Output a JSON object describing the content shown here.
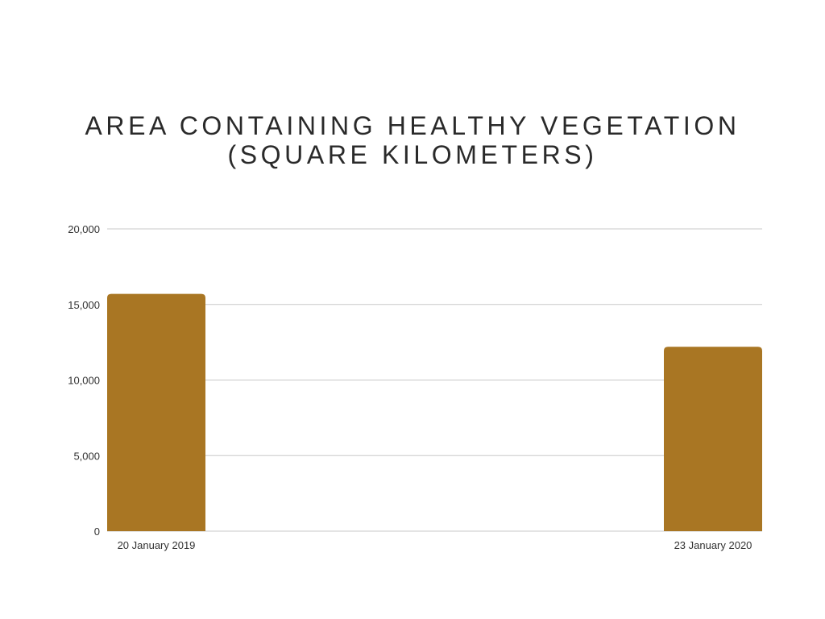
{
  "chart_title": {
    "line1": "AREA CONTAINING HEALTHY VEGETATION",
    "line2": "(SQUARE KILOMETERS)"
  },
  "colors": {
    "bar": "#a97623",
    "grid": "#c8c8c8",
    "background": "#ffffff"
  },
  "chart_data": {
    "type": "bar",
    "title": "AREA CONTAINING HEALTHY VEGETATION (SQUARE KILOMETERS)",
    "categories": [
      "20 January 2019",
      "23 January 2020"
    ],
    "values": [
      15700,
      12200
    ],
    "xlabel": "",
    "ylabel": "",
    "ylim": [
      0,
      20000
    ],
    "yticks": [
      0,
      5000,
      10000,
      15000,
      20000
    ],
    "ytick_labels": [
      "0",
      "5,000",
      "10,000",
      "15,000",
      "20,000"
    ],
    "grid": true,
    "legend": "none"
  }
}
